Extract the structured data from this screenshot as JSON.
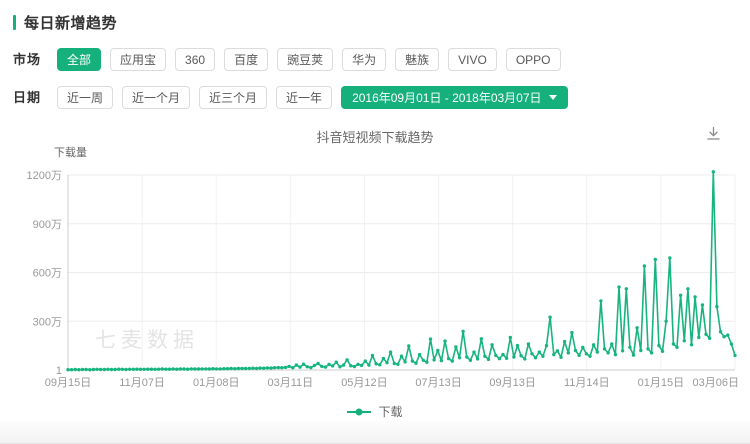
{
  "header": {
    "title": "每日新增趋势"
  },
  "filters": {
    "market": {
      "label": "市场",
      "selected": "全部",
      "options": [
        "全部",
        "应用宝",
        "360",
        "百度",
        "豌豆荚",
        "华为",
        "魅族",
        "VIVO",
        "OPPO"
      ]
    },
    "date": {
      "label": "日期",
      "presets": [
        "近一周",
        "近一个月",
        "近三个月",
        "近一年"
      ],
      "range": "2016年09月01日 - 2018年03月07日"
    }
  },
  "chart": {
    "title": "抖音短视频下载趋势",
    "watermark": "七麦数据",
    "legend": "下载"
  },
  "colors": {
    "accent": "#15b07b",
    "line": "#17b47e",
    "grid": "#ededed",
    "axis": "#cccccc",
    "tick_text": "#999999",
    "watermark": "#e4e4e4"
  },
  "chart_data": {
    "type": "line",
    "title": "抖音短视频下载趋势",
    "ylabel": "下载量",
    "xlabel": "",
    "unit": "万",
    "grid": true,
    "legend_position": "bottom",
    "x_range": [
      "2016年09月01日",
      "2018年03月07日"
    ],
    "x_tick_labels": [
      "09月15日",
      "11月07日",
      "01月08日",
      "03月11日",
      "05月12日",
      "07月13日",
      "09月13日",
      "11月14日",
      "01月15日",
      "03月06日"
    ],
    "y_ticks": [
      {
        "value": 1200,
        "label": "1200万"
      },
      {
        "value": 900,
        "label": "900万"
      },
      {
        "value": 600,
        "label": "600万"
      },
      {
        "value": 300,
        "label": "300万"
      },
      {
        "value": 0,
        "label": "1"
      }
    ],
    "ylim": [
      0,
      1250
    ],
    "series": [
      {
        "name": "下载",
        "color": "#17b47e",
        "values_wan": [
          2,
          2,
          3,
          2,
          3,
          3,
          2,
          3,
          4,
          3,
          3,
          4,
          3,
          3,
          5,
          4,
          3,
          4,
          4,
          5,
          4,
          4,
          5,
          5,
          4,
          5,
          6,
          5,
          5,
          6,
          5,
          6,
          6,
          5,
          7,
          6,
          6,
          7,
          7,
          6,
          8,
          7,
          7,
          8,
          8,
          9,
          8,
          9,
          10,
          9,
          10,
          11,
          10,
          12,
          11,
          13,
          12,
          14,
          15,
          14,
          16,
          22,
          14,
          30,
          18,
          36,
          20,
          15,
          28,
          40,
          22,
          18,
          34,
          25,
          48,
          20,
          30,
          62,
          26,
          21,
          35,
          28,
          55,
          30,
          90,
          38,
          32,
          70,
          45,
          110,
          40,
          36,
          85,
          50,
          148,
          55,
          42,
          95,
          60,
          48,
          190,
          62,
          120,
          58,
          178,
          70,
          55,
          142,
          75,
          238,
          80,
          60,
          110,
          68,
          192,
          85,
          65,
          155,
          90,
          70,
          95,
          72,
          200,
          80,
          150,
          88,
          68,
          160,
          100,
          75,
          110,
          85,
          150,
          325,
          95,
          118,
          78,
          175,
          105,
          230,
          120,
          90,
          140,
          100,
          85,
          155,
          110,
          425,
          130,
          105,
          160,
          95,
          510,
          118,
          500,
          140,
          92,
          260,
          120,
          640,
          130,
          105,
          680,
          150,
          115,
          300,
          690,
          160,
          140,
          460,
          180,
          500,
          155,
          450,
          200,
          400,
          220,
          195,
          1220,
          390,
          235,
          205,
          215,
          160,
          90
        ]
      }
    ]
  }
}
